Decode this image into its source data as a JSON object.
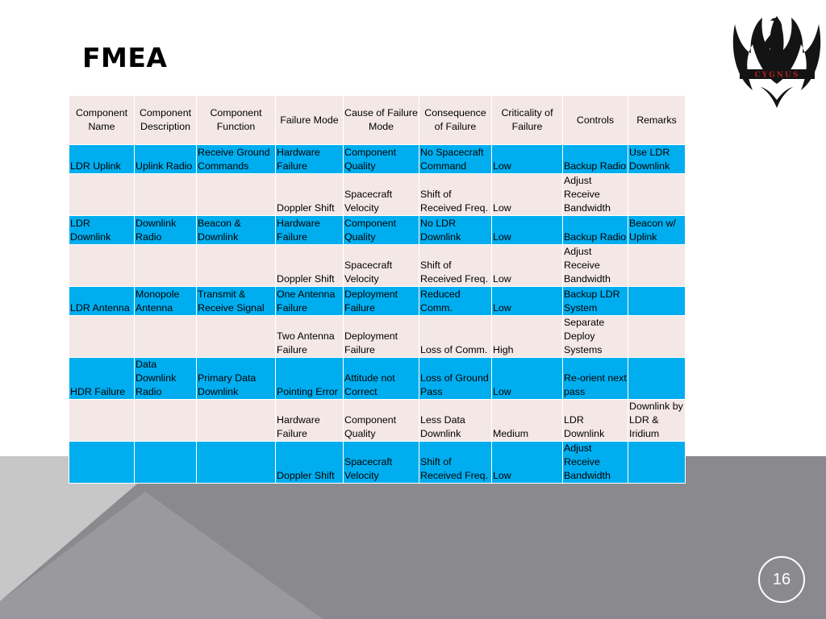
{
  "slide": {
    "title": "FMEA",
    "page_number": "16",
    "logo_text": "CYGNUS"
  },
  "colors": {
    "row_blue": "#00aeef",
    "row_pink": "#f4e8e7",
    "bg_light_gray": "#c5c5c5",
    "bg_dark_gray": "#8a8a8e"
  },
  "table": {
    "headers": [
      "Component Name",
      "Component Description",
      "Component Function",
      "Failure Mode",
      "Cause of Failure Mode",
      "Consequence of Failure",
      "Criticality of Failure",
      "Controls",
      "Remarks"
    ],
    "rows": [
      {
        "style": "blue",
        "cells": [
          "LDR Uplink",
          "Uplink Radio",
          "Receive Ground Commands",
          "Hardware Failure",
          "Component Quality",
          "No Spacecraft Command",
          "Low",
          "Backup Radio",
          "Use LDR Downlink"
        ]
      },
      {
        "style": "pink",
        "cells": [
          "",
          "",
          "",
          "Doppler Shift",
          "Spacecraft Velocity",
          "Shift of Received Freq.",
          "Low",
          "Adjust Receive Bandwidth",
          ""
        ]
      },
      {
        "style": "blue",
        "cells": [
          "LDR Downlink",
          "Downlink Radio",
          "Beacon & Downlink",
          "Hardware Failure",
          "Component Quality",
          "No LDR Downlink",
          "Low",
          "Backup Radio",
          "Beacon w/ Uplink"
        ]
      },
      {
        "style": "pink",
        "cells": [
          "",
          "",
          "",
          "Doppler Shift",
          "Spacecraft Velocity",
          "Shift of Received Freq.",
          "Low",
          "Adjust Receive Bandwidth",
          ""
        ]
      },
      {
        "style": "blue",
        "cells": [
          "LDR Antenna",
          "Monopole Antenna",
          "Transmit & Receive Signal",
          "One Antenna Failure",
          "Deployment Failure",
          "Reduced Comm.",
          "Low",
          "Backup LDR System",
          ""
        ]
      },
      {
        "style": "pink",
        "cells": [
          "",
          "",
          "",
          "Two Antenna Failure",
          "Deployment Failure",
          "Loss of Comm.",
          "High",
          "Separate Deploy Systems",
          ""
        ]
      },
      {
        "style": "blue",
        "cells": [
          "HDR Failure",
          "Data Downlink Radio",
          "Primary Data Downlink",
          "Pointing Error",
          "Attitude not Correct",
          "Loss of Ground Pass",
          "Low",
          "Re-orient next pass",
          ""
        ]
      },
      {
        "style": "pink",
        "cells": [
          "",
          "",
          "",
          "Hardware Failure",
          "Component Quality",
          "Less Data Downlink",
          "Medium",
          "LDR Downlink",
          "Downlink by LDR & Iridium"
        ]
      },
      {
        "style": "blue",
        "cells": [
          "",
          "",
          "",
          "Doppler Shift",
          "Spacecraft Velocity",
          "Shift of Received Freq.",
          "Low",
          "Adjust Receive Bandwidth",
          ""
        ]
      }
    ]
  }
}
